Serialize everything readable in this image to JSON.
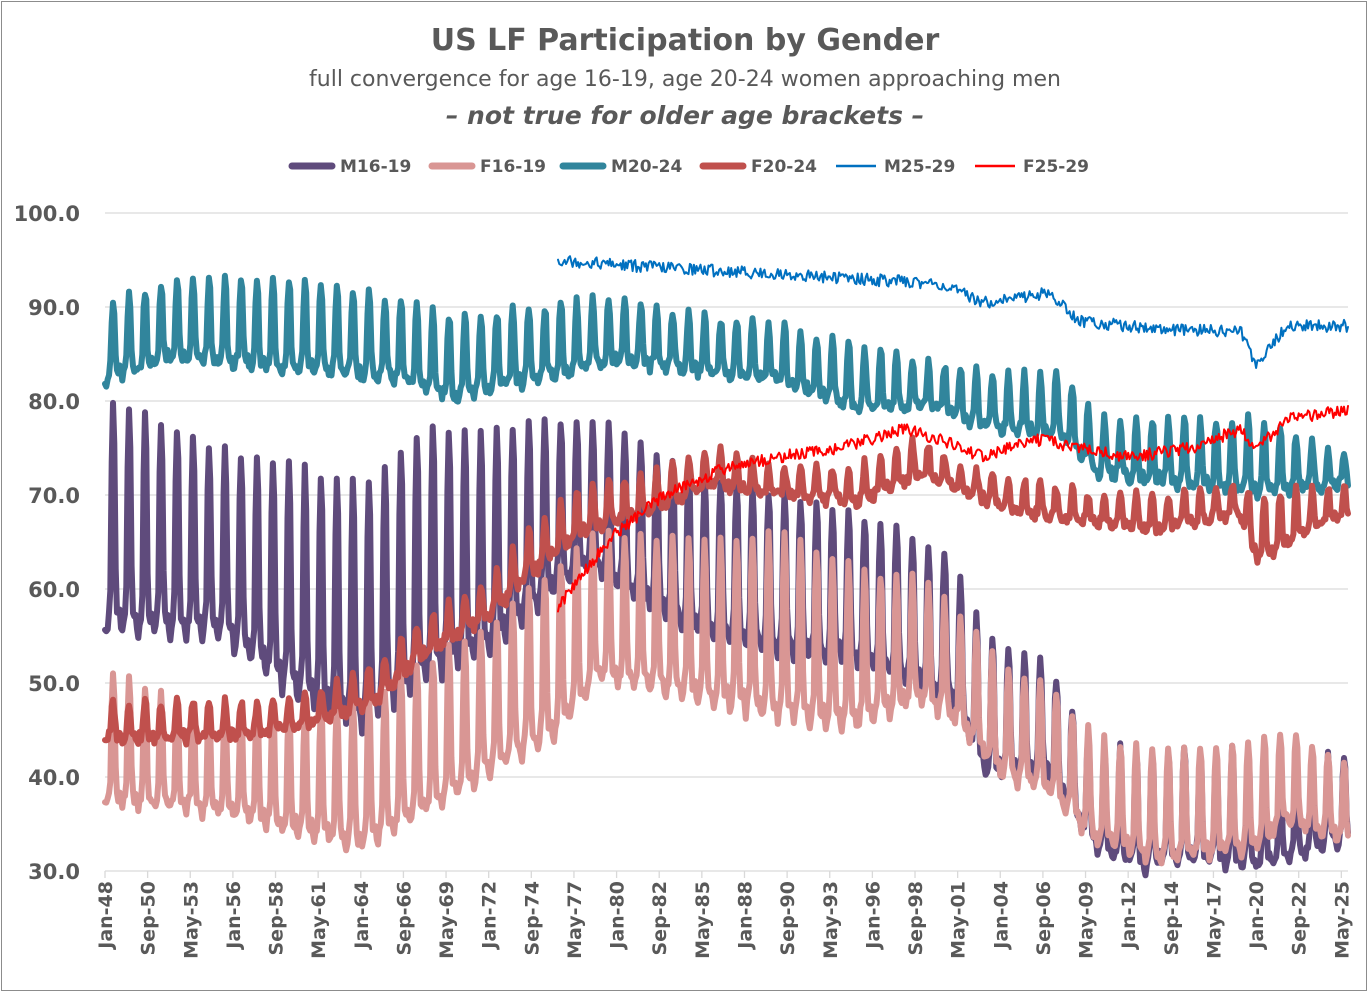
{
  "chart_data": {
    "type": "line",
    "title": "US LF Participation by Gender",
    "subtitle": "full convergence for age 16-19, age 20-24 women approaching men",
    "subtitle2": "– not true for older age brackets –",
    "xlabel": "",
    "ylabel": "",
    "ylim": [
      30,
      100
    ],
    "yticks": [
      "30.0",
      "40.0",
      "50.0",
      "60.0",
      "70.0",
      "80.0",
      "90.0",
      "100.0"
    ],
    "x_start": "Jan-1948",
    "x_end": "Aug-2025",
    "frequency": "monthly",
    "xticks": [
      "Jan-48",
      "Sep-50",
      "May-53",
      "Jan-56",
      "Sep-58",
      "May-61",
      "Jan-64",
      "Sep-66",
      "May-69",
      "Jan-72",
      "Sep-74",
      "May-77",
      "Jan-80",
      "Sep-82",
      "May-85",
      "Jan-88",
      "Sep-90",
      "May-93",
      "Jan-96",
      "Sep-98",
      "May-01",
      "Jan-04",
      "Sep-06",
      "May-09",
      "Jan-12",
      "Sep-14",
      "May-17",
      "Jan-20",
      "Sep-22",
      "May-25"
    ],
    "grid": "horizontal",
    "legend_position": "top",
    "seasonal_profile": [
      0.05,
      0.0,
      0.05,
      0.1,
      0.2,
      0.75,
      1.0,
      0.85,
      0.3,
      0.1,
      0.08,
      0.1
    ],
    "series": [
      {
        "name": "M16-19",
        "color": "#5f4b7c",
        "style": "thick",
        "annual_range": [
          [
            1948,
            55,
            80
          ],
          [
            1955,
            55,
            75
          ],
          [
            1960,
            48,
            73
          ],
          [
            1964,
            45,
            71
          ],
          [
            1968,
            50,
            77
          ],
          [
            1972,
            53,
            77
          ],
          [
            1978,
            62,
            78
          ],
          [
            1980,
            60,
            77
          ],
          [
            1985,
            55,
            72
          ],
          [
            1990,
            53,
            70
          ],
          [
            1995,
            52,
            68
          ],
          [
            1998,
            50,
            66
          ],
          [
            2001,
            48,
            63
          ],
          [
            2003,
            40,
            55
          ],
          [
            2007,
            40,
            52
          ],
          [
            2010,
            32,
            43
          ],
          [
            2013,
            30,
            43
          ],
          [
            2016,
            31,
            43
          ],
          [
            2020,
            30,
            43
          ],
          [
            2025.6,
            33,
            42
          ]
        ]
      },
      {
        "name": "F16-19",
        "color": "#d99694",
        "style": "thick",
        "annual_range": [
          [
            1948,
            37,
            51
          ],
          [
            1955,
            36,
            47
          ],
          [
            1960,
            34,
            47
          ],
          [
            1964,
            32,
            48
          ],
          [
            1968,
            36,
            52
          ],
          [
            1972,
            40,
            56
          ],
          [
            1976,
            44,
            62
          ],
          [
            1979,
            50,
            66
          ],
          [
            1985,
            48,
            65
          ],
          [
            1990,
            46,
            66
          ],
          [
            1995,
            45,
            62
          ],
          [
            1999,
            48,
            61
          ],
          [
            2001,
            46,
            58
          ],
          [
            2004,
            40,
            52
          ],
          [
            2007,
            38,
            50
          ],
          [
            2010,
            33,
            44
          ],
          [
            2014,
            31,
            43
          ],
          [
            2020,
            32,
            44
          ],
          [
            2022,
            35,
            45
          ],
          [
            2025.6,
            33,
            42
          ]
        ]
      },
      {
        "name": "M20-24",
        "color": "#31859c",
        "style": "thick",
        "annual_range": [
          [
            1948,
            82,
            90
          ],
          [
            1952,
            84,
            93
          ],
          [
            1960,
            83,
            93
          ],
          [
            1966,
            82,
            91
          ],
          [
            1970,
            80,
            89
          ],
          [
            1975,
            82,
            90
          ],
          [
            1980,
            84,
            91
          ],
          [
            1985,
            83,
            89
          ],
          [
            1990,
            82,
            88
          ],
          [
            1995,
            79,
            86
          ],
          [
            2000,
            79,
            84
          ],
          [
            2003,
            77,
            83
          ],
          [
            2008,
            76,
            83
          ],
          [
            2010,
            72,
            78
          ],
          [
            2015,
            71,
            78
          ],
          [
            2020,
            70,
            78
          ],
          [
            2025.6,
            71,
            74
          ]
        ]
      },
      {
        "name": "F20-24",
        "color": "#c0504d",
        "style": "thick",
        "annual_range": [
          [
            1948,
            44,
            48
          ],
          [
            1955,
            44,
            48
          ],
          [
            1960,
            45,
            48
          ],
          [
            1965,
            48,
            52
          ],
          [
            1968,
            53,
            57
          ],
          [
            1972,
            57,
            61
          ],
          [
            1975,
            62,
            67
          ],
          [
            1978,
            66,
            71
          ],
          [
            1982,
            68,
            72
          ],
          [
            1986,
            71,
            75
          ],
          [
            1990,
            70,
            73
          ],
          [
            1995,
            69,
            73
          ],
          [
            1999,
            72,
            76
          ],
          [
            2002,
            70,
            73
          ],
          [
            2005,
            68,
            72
          ],
          [
            2010,
            67,
            70
          ],
          [
            2014,
            66,
            70
          ],
          [
            2019,
            68,
            71
          ],
          [
            2020,
            63,
            70
          ],
          [
            2025.6,
            68,
            71
          ]
        ]
      },
      {
        "name": "M25-29",
        "color": "#0070c0",
        "style": "thin",
        "annual_range": [
          [
            1976.3,
            94.5,
            95.5
          ],
          [
            1980,
            94,
            95
          ],
          [
            1985,
            93.5,
            94.5
          ],
          [
            1990,
            93,
            94
          ],
          [
            1995,
            92.5,
            93.5
          ],
          [
            2000,
            92,
            93
          ],
          [
            2003,
            90,
            91
          ],
          [
            2007,
            91,
            92
          ],
          [
            2009,
            88,
            89
          ],
          [
            2015,
            87,
            88
          ],
          [
            2019,
            87,
            88
          ],
          [
            2020,
            83.5,
            84.5
          ],
          [
            2022,
            87.5,
            88.5
          ],
          [
            2025.6,
            87.5,
            88.5
          ]
        ]
      },
      {
        "name": "F25-29",
        "color": "#ff0000",
        "style": "thin",
        "annual_range": [
          [
            1976.3,
            57.5,
            58.5
          ],
          [
            1978,
            61.5,
            62.5
          ],
          [
            1980,
            65.5,
            66.5
          ],
          [
            1983,
            69.5,
            70.5
          ],
          [
            1987,
            72.5,
            73.5
          ],
          [
            1990,
            73.5,
            74.5
          ],
          [
            1994,
            74.5,
            75.5
          ],
          [
            1998,
            76.5,
            77.5
          ],
          [
            2000,
            75.5,
            76.5
          ],
          [
            2003,
            73.5,
            74.5
          ],
          [
            2006,
            75.5,
            76.5
          ],
          [
            2009,
            74.5,
            75.5
          ],
          [
            2012,
            73.5,
            74.5
          ],
          [
            2016,
            74.5,
            75.5
          ],
          [
            2019,
            76.5,
            77.5
          ],
          [
            2020,
            74.5,
            75.5
          ],
          [
            2022,
            77.5,
            78.5
          ],
          [
            2025.6,
            78.5,
            79.5
          ]
        ]
      }
    ]
  }
}
